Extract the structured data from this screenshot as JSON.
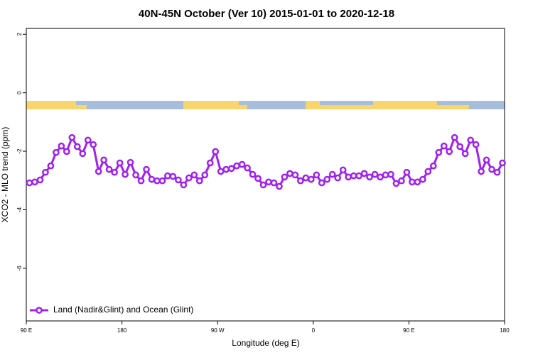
{
  "chart_data": {
    "type": "line",
    "title": "40N-45N October (Ver 10)   2015-01-01 to 2020-12-18",
    "xlabel": "Longitude (deg E)",
    "ylabel": "XCO2 - MLO trend (ppm)",
    "x": [
      93,
      98,
      103,
      108,
      113,
      118,
      123,
      128,
      133,
      138,
      143,
      148,
      153,
      158,
      163,
      168,
      173,
      178,
      183,
      188,
      193,
      198,
      203,
      208,
      213,
      218,
      223,
      228,
      233,
      238,
      243,
      248,
      253,
      258,
      263,
      268,
      273,
      278,
      283,
      288,
      293,
      298,
      303,
      308,
      313,
      318,
      323,
      328,
      333,
      338,
      343,
      348,
      353,
      358,
      363,
      368,
      373,
      378,
      383,
      388,
      393,
      398,
      403,
      408,
      413,
      418,
      423,
      428,
      433,
      438,
      443,
      448,
      453,
      458,
      463,
      468,
      473,
      478,
      483,
      488,
      493,
      498,
      503,
      508,
      513,
      518,
      523,
      528,
      533,
      538
    ],
    "series": [
      {
        "name": "Land (Nadir&Glint) and Ocean (Glint)",
        "color": "#a020f0",
        "values": [
          -3.08,
          -3.05,
          -2.98,
          -2.72,
          -2.5,
          -2.04,
          -1.82,
          -2.01,
          -1.53,
          -1.84,
          -2.08,
          -1.62,
          -1.77,
          -2.69,
          -2.3,
          -2.62,
          -2.72,
          -2.4,
          -2.79,
          -2.38,
          -2.81,
          -3.01,
          -2.62,
          -2.96,
          -3.01,
          -3.01,
          -2.84,
          -2.86,
          -2.98,
          -3.15,
          -2.91,
          -2.81,
          -3.01,
          -2.81,
          -2.4,
          -2.01,
          -2.69,
          -2.62,
          -2.59,
          -2.5,
          -2.45,
          -2.57,
          -2.79,
          -2.93,
          -3.15,
          -3.05,
          -3.08,
          -3.2,
          -2.88,
          -2.76,
          -2.81,
          -3.01,
          -2.91,
          -2.96,
          -2.81,
          -3.08,
          -2.96,
          -2.79,
          -2.91,
          -2.64,
          -2.88,
          -2.84,
          -2.84,
          -2.76,
          -2.88,
          -2.79,
          -2.88,
          -2.81,
          -2.79,
          -3.1,
          -3.01,
          -2.72,
          -3.05,
          -3.05,
          -2.96,
          -2.69,
          -2.5,
          -2.04,
          -1.82,
          -2.01,
          -1.53,
          -1.84,
          -2.08,
          -1.62,
          -1.77,
          -2.69,
          -2.3,
          -2.62,
          -2.72,
          -2.4
        ]
      }
    ],
    "xlim": [
      90,
      540
    ],
    "xticks": [
      {
        "value": 90,
        "label": "90 E"
      },
      180,
      {
        "value": 270,
        "label": "90 W"
      },
      {
        "value": 360,
        "label": "0"
      },
      {
        "value": 450,
        "label": "90 E"
      },
      {
        "value": 540,
        "label": "180"
      }
    ],
    "ylim": [
      -7.8,
      2.2
    ],
    "yticks": [
      2,
      0,
      -2,
      -4,
      -6
    ],
    "grid": false,
    "legend": "bottom-left"
  }
}
